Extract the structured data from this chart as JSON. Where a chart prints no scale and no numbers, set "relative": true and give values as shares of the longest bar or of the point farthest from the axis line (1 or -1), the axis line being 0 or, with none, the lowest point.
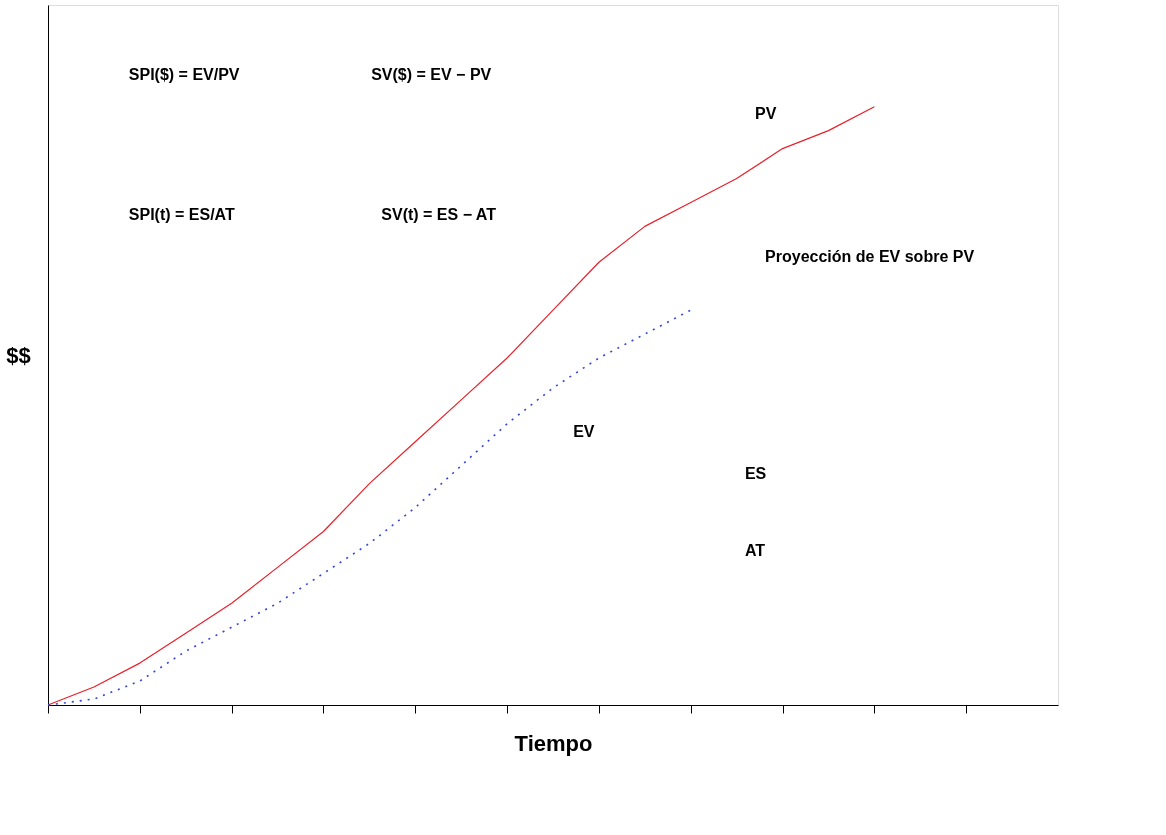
{
  "chart_data": {
    "type": "line",
    "relative": true,
    "xlabel": "Tiempo",
    "ylabel": "$$",
    "categories": [
      null,
      null,
      null,
      null,
      null,
      null,
      null,
      null,
      null,
      null,
      null,
      null,
      null,
      null,
      null,
      null,
      null,
      null,
      null,
      null,
      null,
      null,
      null
    ],
    "tick_labels": false,
    "grid": false,
    "legend": false,
    "series": [
      {
        "color": "#e8202a",
        "line_style": "solid",
        "values": [
          0,
          0.03,
          0.07,
          0.12,
          0.17,
          0.23,
          0.29,
          0.37,
          0.44,
          0.51,
          0.58,
          0.66,
          0.74,
          0.8,
          0.84,
          0.88,
          0.93,
          0.96,
          1.0,
          null,
          null,
          null,
          null
        ]
      },
      {
        "color": "#3344dd",
        "line_style": "dotted",
        "values": [
          0,
          0.01,
          0.04,
          0.09,
          0.13,
          0.17,
          0.22,
          0.27,
          0.33,
          0.4,
          0.47,
          0.53,
          0.58,
          0.62,
          0.66,
          null,
          null,
          null,
          null,
          null,
          null,
          null,
          null
        ]
      }
    ],
    "annotations": [
      "SPI($) = EV/PV",
      "SV($) = EV − PV",
      "SPI(t) = ES/AT",
      "SV(t) = ES − AT",
      "PV",
      "Proyección de EV sobre PV",
      "EV",
      "ES",
      "AT"
    ]
  }
}
